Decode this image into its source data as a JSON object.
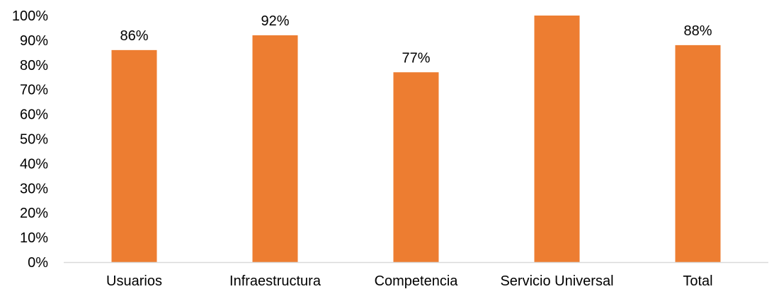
{
  "chart_data": {
    "type": "bar",
    "categories": [
      "Usuarios",
      "Infraestructura",
      "Competencia",
      "Servicio Universal",
      "Total"
    ],
    "values": [
      86,
      92,
      77,
      100,
      88
    ],
    "data_labels": [
      "86%",
      "92%",
      "77%",
      "",
      "88%"
    ],
    "ylim": [
      0,
      100
    ],
    "yticks": [
      0,
      10,
      20,
      30,
      40,
      50,
      60,
      70,
      80,
      90,
      100
    ],
    "ytick_labels": [
      "0%",
      "10%",
      "20%",
      "30%",
      "40%",
      "50%",
      "60%",
      "70%",
      "80%",
      "90%",
      "100%"
    ],
    "grid": false,
    "bar_color": "#ED7D31",
    "axis_color": "#D9D9D9"
  }
}
